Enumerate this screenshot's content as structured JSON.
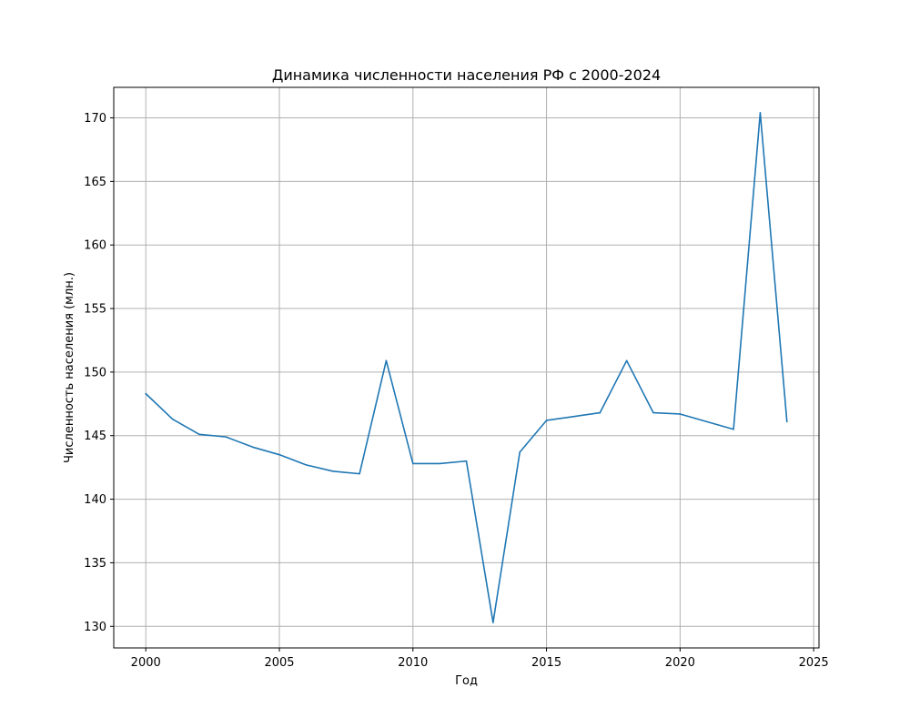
{
  "chart_data": {
    "type": "line",
    "title": "Динамика численности населения РФ с 2000-2024",
    "xlabel": "Год",
    "ylabel": "Численность населения (млн.)",
    "xlim": [
      1998.8,
      2025.2
    ],
    "ylim": [
      128.3,
      172.4
    ],
    "xticks": [
      2000,
      2005,
      2010,
      2015,
      2020,
      2025
    ],
    "yticks": [
      130,
      135,
      140,
      145,
      150,
      155,
      160,
      165,
      170
    ],
    "grid": true,
    "colors": {
      "line": "#1f77b4",
      "grid": "#b0b0b0"
    },
    "series": [
      {
        "x": [
          2000,
          2001,
          2002,
          2003,
          2004,
          2005,
          2006,
          2007,
          2008,
          2009,
          2010,
          2011,
          2012,
          2013,
          2014,
          2015,
          2016,
          2017,
          2018,
          2019,
          2020,
          2021,
          2022,
          2023,
          2024
        ],
        "values": [
          148.3,
          146.3,
          145.1,
          144.9,
          144.1,
          143.5,
          142.7,
          142.2,
          142.0,
          150.9,
          142.8,
          142.8,
          143.0,
          130.3,
          143.7,
          146.2,
          146.5,
          146.8,
          150.9,
          146.8,
          146.7,
          146.1,
          145.5,
          170.4,
          146.1
        ]
      }
    ]
  }
}
